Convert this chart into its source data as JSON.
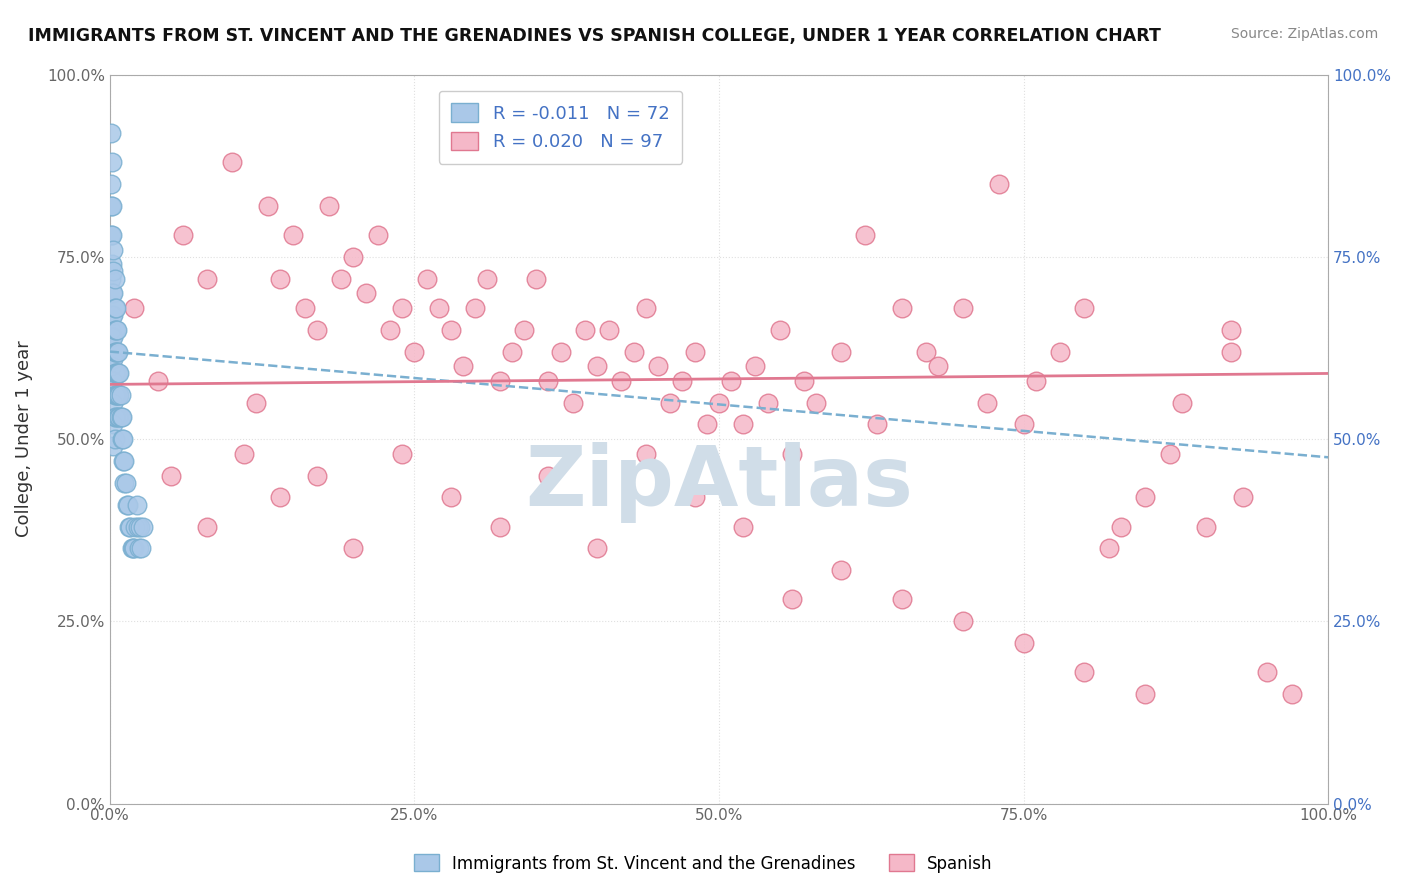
{
  "title": "IMMIGRANTS FROM ST. VINCENT AND THE GRENADINES VS SPANISH COLLEGE, UNDER 1 YEAR CORRELATION CHART",
  "source": "Source: ZipAtlas.com",
  "ylabel": "College, Under 1 year",
  "legend_label_1": "Immigrants from St. Vincent and the Grenadines",
  "legend_label_2": "Spanish",
  "R1": -0.011,
  "N1": 72,
  "R2": 0.02,
  "N2": 97,
  "color1_fill": "#aac8e8",
  "color1_edge": "#7aafd0",
  "color2_fill": "#f5b8c8",
  "color2_edge": "#e07890",
  "xlim": [
    0.0,
    1.0
  ],
  "ylim": [
    0.0,
    1.0
  ],
  "xticks": [
    0.0,
    0.25,
    0.5,
    0.75,
    1.0
  ],
  "yticks": [
    0.0,
    0.25,
    0.5,
    0.75,
    1.0
  ],
  "xtick_labels": [
    "0.0%",
    "25.0%",
    "50.0%",
    "75.0%",
    "100.0%"
  ],
  "ytick_labels": [
    "0.0%",
    "25.0%",
    "50.0%",
    "75.0%",
    "100.0%"
  ],
  "blue_x": [
    0.001,
    0.001,
    0.001,
    0.001,
    0.001,
    0.001,
    0.002,
    0.002,
    0.002,
    0.002,
    0.002,
    0.002,
    0.002,
    0.002,
    0.003,
    0.003,
    0.003,
    0.003,
    0.003,
    0.003,
    0.003,
    0.003,
    0.003,
    0.003,
    0.004,
    0.004,
    0.004,
    0.004,
    0.004,
    0.004,
    0.004,
    0.004,
    0.005,
    0.005,
    0.005,
    0.005,
    0.005,
    0.005,
    0.006,
    0.006,
    0.006,
    0.006,
    0.007,
    0.007,
    0.007,
    0.007,
    0.008,
    0.008,
    0.008,
    0.009,
    0.009,
    0.01,
    0.01,
    0.011,
    0.011,
    0.012,
    0.012,
    0.013,
    0.014,
    0.015,
    0.016,
    0.017,
    0.018,
    0.019,
    0.02,
    0.021,
    0.022,
    0.023,
    0.024,
    0.025,
    0.026,
    0.027
  ],
  "blue_y": [
    0.92,
    0.85,
    0.82,
    0.78,
    0.72,
    0.65,
    0.88,
    0.82,
    0.78,
    0.74,
    0.7,
    0.67,
    0.64,
    0.6,
    0.76,
    0.73,
    0.7,
    0.67,
    0.64,
    0.61,
    0.58,
    0.55,
    0.52,
    0.49,
    0.72,
    0.68,
    0.65,
    0.62,
    0.59,
    0.56,
    0.53,
    0.5,
    0.68,
    0.65,
    0.62,
    0.59,
    0.56,
    0.53,
    0.65,
    0.62,
    0.59,
    0.56,
    0.62,
    0.59,
    0.56,
    0.53,
    0.59,
    0.56,
    0.53,
    0.56,
    0.53,
    0.53,
    0.5,
    0.5,
    0.47,
    0.47,
    0.44,
    0.44,
    0.41,
    0.41,
    0.38,
    0.38,
    0.35,
    0.35,
    0.35,
    0.38,
    0.41,
    0.38,
    0.35,
    0.38,
    0.35,
    0.38
  ],
  "pink_x": [
    0.02,
    0.04,
    0.06,
    0.08,
    0.1,
    0.12,
    0.13,
    0.14,
    0.15,
    0.16,
    0.17,
    0.18,
    0.19,
    0.2,
    0.21,
    0.22,
    0.23,
    0.24,
    0.25,
    0.26,
    0.27,
    0.28,
    0.29,
    0.3,
    0.31,
    0.32,
    0.33,
    0.34,
    0.35,
    0.36,
    0.37,
    0.38,
    0.39,
    0.4,
    0.41,
    0.42,
    0.43,
    0.44,
    0.45,
    0.46,
    0.47,
    0.48,
    0.49,
    0.5,
    0.51,
    0.52,
    0.53,
    0.54,
    0.55,
    0.56,
    0.57,
    0.58,
    0.6,
    0.62,
    0.63,
    0.65,
    0.67,
    0.68,
    0.7,
    0.72,
    0.73,
    0.75,
    0.76,
    0.78,
    0.8,
    0.82,
    0.83,
    0.85,
    0.87,
    0.88,
    0.9,
    0.92,
    0.93,
    0.95,
    0.05,
    0.08,
    0.11,
    0.14,
    0.17,
    0.2,
    0.24,
    0.28,
    0.32,
    0.36,
    0.4,
    0.44,
    0.48,
    0.52,
    0.56,
    0.6,
    0.65,
    0.7,
    0.75,
    0.8,
    0.85,
    0.92,
    0.97
  ],
  "pink_y": [
    0.68,
    0.58,
    0.78,
    0.72,
    0.88,
    0.55,
    0.82,
    0.72,
    0.78,
    0.68,
    0.65,
    0.82,
    0.72,
    0.75,
    0.7,
    0.78,
    0.65,
    0.68,
    0.62,
    0.72,
    0.68,
    0.65,
    0.6,
    0.68,
    0.72,
    0.58,
    0.62,
    0.65,
    0.72,
    0.58,
    0.62,
    0.55,
    0.65,
    0.6,
    0.65,
    0.58,
    0.62,
    0.68,
    0.6,
    0.55,
    0.58,
    0.62,
    0.52,
    0.55,
    0.58,
    0.52,
    0.6,
    0.55,
    0.65,
    0.48,
    0.58,
    0.55,
    0.62,
    0.78,
    0.52,
    0.68,
    0.62,
    0.6,
    0.68,
    0.55,
    0.85,
    0.52,
    0.58,
    0.62,
    0.68,
    0.35,
    0.38,
    0.42,
    0.48,
    0.55,
    0.38,
    0.65,
    0.42,
    0.18,
    0.45,
    0.38,
    0.48,
    0.42,
    0.45,
    0.35,
    0.48,
    0.42,
    0.38,
    0.45,
    0.35,
    0.48,
    0.42,
    0.38,
    0.28,
    0.32,
    0.28,
    0.25,
    0.22,
    0.18,
    0.15,
    0.62,
    0.15
  ],
  "blue_trend": [
    0.62,
    0.475
  ],
  "pink_trend": [
    0.575,
    0.59
  ],
  "background_color": "#ffffff",
  "grid_color": "#e0e0e0",
  "text_color_blue": "#4472c4",
  "watermark": "ZipAtlas",
  "watermark_color": "#d0dde8"
}
